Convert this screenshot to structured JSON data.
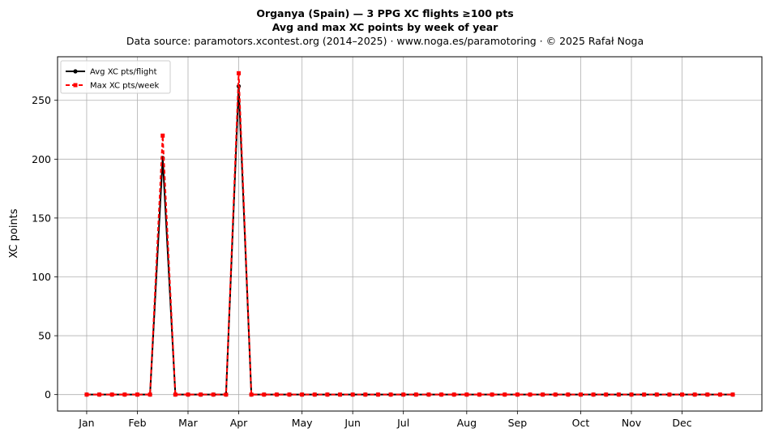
{
  "title_lines": [
    "Organya (Spain)  —  3 PPG XC flights ≥100 pts",
    "Avg and max XC points by week of year",
    "Data source: paramotors.xcontest.org (2014–2025)  ·  www.noga.es/paramotoring  ·  © 2025 Rafał Noga"
  ],
  "chart_data": {
    "type": "line",
    "title": "Organya (Spain)  —  3 PPG XC flights ≥100 pts",
    "subtitle": "Avg and max XC points by week of year",
    "xlabel": "",
    "ylabel": "XC points",
    "x": [
      1,
      2,
      3,
      4,
      5,
      6,
      7,
      8,
      9,
      10,
      11,
      12,
      13,
      14,
      15,
      16,
      17,
      18,
      19,
      20,
      21,
      22,
      23,
      24,
      25,
      26,
      27,
      28,
      29,
      30,
      31,
      32,
      33,
      34,
      35,
      36,
      37,
      38,
      39,
      40,
      41,
      42,
      43,
      44,
      45,
      46,
      47,
      48,
      49,
      50,
      51,
      52
    ],
    "x_tick_positions": [
      1,
      5,
      9,
      13,
      18,
      22,
      26,
      31,
      35,
      40,
      44,
      48
    ],
    "x_tick_labels": [
      "Jan",
      "Feb",
      "Mar",
      "Apr",
      "May",
      "Jun",
      "Jul",
      "Aug",
      "Sep",
      "Oct",
      "Nov",
      "Dec"
    ],
    "xlim": [
      -1.3,
      54.3
    ],
    "ylim": [
      -14,
      287
    ],
    "y_ticks": [
      0,
      50,
      100,
      150,
      200,
      250
    ],
    "grid": true,
    "legend_position": "top-left",
    "series": [
      {
        "name": "Avg XC pts/flight",
        "color": "#000000",
        "style": "solid",
        "marker": "circle",
        "values": [
          0,
          0,
          0,
          0,
          0,
          0,
          201,
          0,
          0,
          0,
          0,
          0,
          262,
          0,
          0,
          0,
          0,
          0,
          0,
          0,
          0,
          0,
          0,
          0,
          0,
          0,
          0,
          0,
          0,
          0,
          0,
          0,
          0,
          0,
          0,
          0,
          0,
          0,
          0,
          0,
          0,
          0,
          0,
          0,
          0,
          0,
          0,
          0,
          0,
          0,
          0,
          0
        ]
      },
      {
        "name": "Max XC pts/week",
        "color": "#ff0000",
        "style": "dashed",
        "marker": "square",
        "values": [
          0,
          0,
          0,
          0,
          0,
          0,
          220,
          0,
          0,
          0,
          0,
          0,
          273,
          0,
          0,
          0,
          0,
          0,
          0,
          0,
          0,
          0,
          0,
          0,
          0,
          0,
          0,
          0,
          0,
          0,
          0,
          0,
          0,
          0,
          0,
          0,
          0,
          0,
          0,
          0,
          0,
          0,
          0,
          0,
          0,
          0,
          0,
          0,
          0,
          0,
          0,
          0
        ]
      }
    ]
  }
}
